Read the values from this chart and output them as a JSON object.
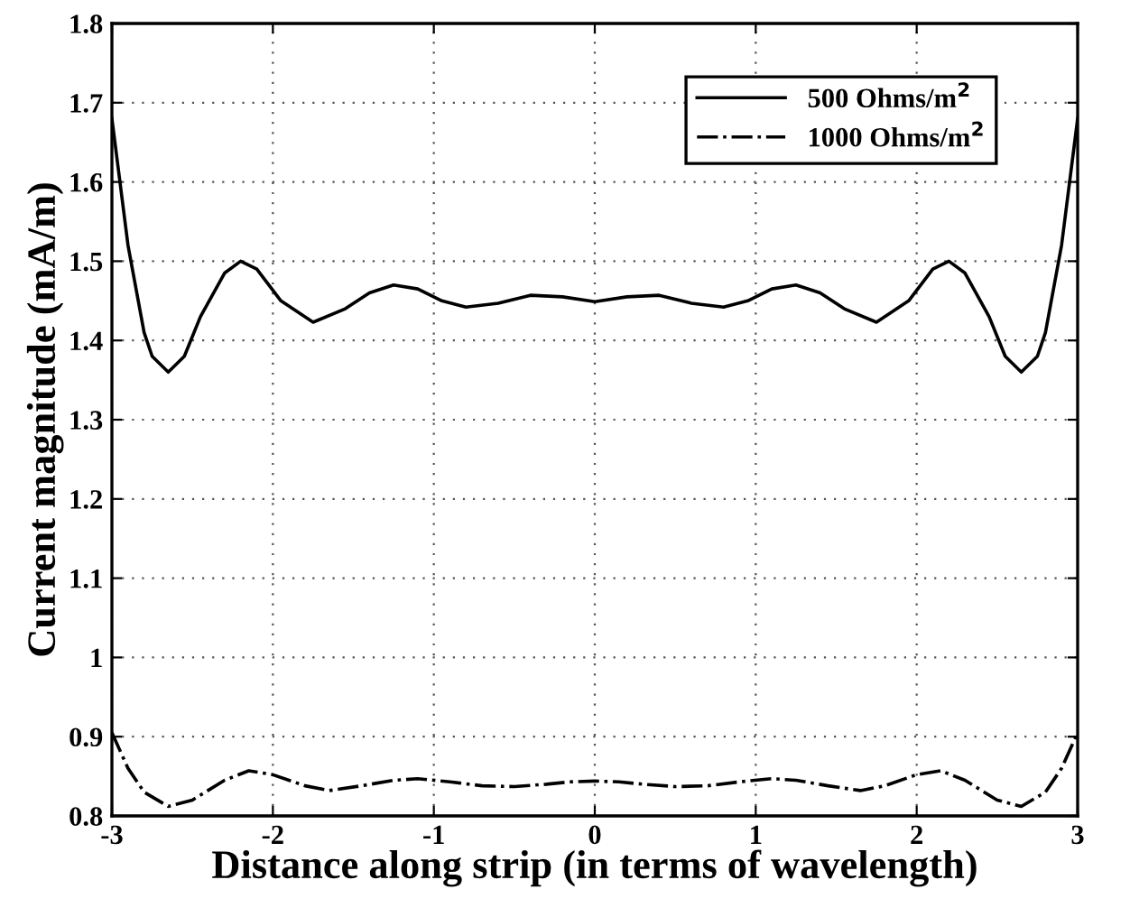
{
  "chart_data": {
    "type": "line",
    "xlabel": "Distance along strip (in terms of wavelength)",
    "ylabel": "Current magnitude (mA/m)",
    "xlim": [
      -3,
      3
    ],
    "xticks": [
      -3,
      -2,
      -1,
      0,
      1,
      2,
      3
    ],
    "ylim": [
      0.8,
      1.8
    ],
    "yticks": [
      0.8,
      0.9,
      1,
      1.1,
      1.2,
      1.3,
      1.4,
      1.5,
      1.6,
      1.7,
      1.8
    ],
    "grid": true,
    "legend": "top right",
    "series": [
      {
        "name": "500 Ohms/m$^{2}$",
        "color": "#000000",
        "line_style": "solid",
        "x": [
          -3,
          -2.9,
          -2.8,
          -2.75,
          -2.65,
          -2.55,
          -2.45,
          -2.3,
          -2.2,
          -2.1,
          -1.95,
          -1.75,
          -1.55,
          -1.4,
          -1.25,
          -1.1,
          -0.95,
          -0.8,
          -0.6,
          -0.4,
          -0.2,
          0,
          0.2,
          0.4,
          0.6,
          0.8,
          0.95,
          1.1,
          1.25,
          1.4,
          1.55,
          1.75,
          1.95,
          2.1,
          2.2,
          2.3,
          2.45,
          2.55,
          2.65,
          2.75,
          2.8,
          2.9,
          3
        ],
        "values": [
          1.68,
          1.52,
          1.41,
          1.38,
          1.36,
          1.38,
          1.43,
          1.485,
          1.5,
          1.49,
          1.45,
          1.423,
          1.44,
          1.46,
          1.47,
          1.465,
          1.45,
          1.442,
          1.447,
          1.457,
          1.455,
          1.449,
          1.455,
          1.457,
          1.447,
          1.442,
          1.45,
          1.465,
          1.47,
          1.46,
          1.44,
          1.423,
          1.45,
          1.49,
          1.5,
          1.485,
          1.43,
          1.38,
          1.36,
          1.38,
          1.41,
          1.52,
          1.68
        ]
      },
      {
        "name": "1000 Ohms/m$^{2}$",
        "color": "#000000",
        "line_style": "dashdot",
        "x": [
          -3,
          -2.9,
          -2.8,
          -2.65,
          -2.5,
          -2.3,
          -2.15,
          -2.0,
          -1.8,
          -1.65,
          -1.45,
          -1.25,
          -1.1,
          -0.9,
          -0.7,
          -0.5,
          -0.3,
          -0.15,
          0,
          0.15,
          0.3,
          0.5,
          0.7,
          0.9,
          1.1,
          1.25,
          1.45,
          1.65,
          1.8,
          2.0,
          2.15,
          2.3,
          2.5,
          2.65,
          2.8,
          2.9,
          3
        ],
        "values": [
          0.905,
          0.86,
          0.83,
          0.812,
          0.82,
          0.845,
          0.857,
          0.852,
          0.838,
          0.832,
          0.838,
          0.845,
          0.847,
          0.843,
          0.838,
          0.837,
          0.84,
          0.843,
          0.844,
          0.843,
          0.84,
          0.837,
          0.838,
          0.843,
          0.847,
          0.845,
          0.838,
          0.832,
          0.838,
          0.852,
          0.857,
          0.845,
          0.82,
          0.812,
          0.83,
          0.86,
          0.905
        ]
      }
    ]
  }
}
